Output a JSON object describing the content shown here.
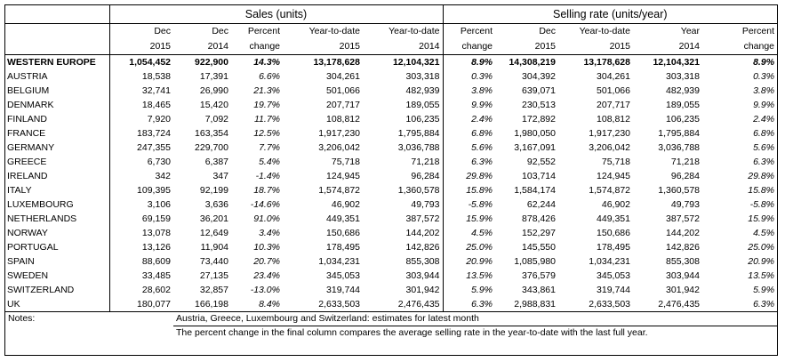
{
  "header": {
    "sales_title": "Sales (units)",
    "rate_title": "Selling rate (units/year)",
    "cols_line1": [
      "Dec",
      "Dec",
      "Percent",
      "Year-to-date",
      "Year-to-date",
      "Percent",
      "Dec",
      "Year-to-date",
      "Year",
      "Percent"
    ],
    "cols_line2": [
      "2015",
      "2014",
      "change",
      "2015",
      "2014",
      "change",
      "2015",
      "2015",
      "2014",
      "change"
    ]
  },
  "rows": [
    {
      "name": "WESTERN EUROPE",
      "bold": true,
      "v": [
        "1,054,452",
        "922,900",
        "14.3%",
        "13,178,628",
        "12,104,321",
        "8.9%",
        "14,308,219",
        "13,178,628",
        "12,104,321",
        "8.9%"
      ]
    },
    {
      "name": "AUSTRIA",
      "v": [
        "18,538",
        "17,391",
        "6.6%",
        "304,261",
        "303,318",
        "0.3%",
        "304,392",
        "304,261",
        "303,318",
        "0.3%"
      ]
    },
    {
      "name": "BELGIUM",
      "v": [
        "32,741",
        "26,990",
        "21.3%",
        "501,066",
        "482,939",
        "3.8%",
        "639,071",
        "501,066",
        "482,939",
        "3.8%"
      ]
    },
    {
      "name": "DENMARK",
      "v": [
        "18,465",
        "15,420",
        "19.7%",
        "207,717",
        "189,055",
        "9.9%",
        "230,513",
        "207,717",
        "189,055",
        "9.9%"
      ]
    },
    {
      "name": "FINLAND",
      "v": [
        "7,920",
        "7,092",
        "11.7%",
        "108,812",
        "106,235",
        "2.4%",
        "172,892",
        "108,812",
        "106,235",
        "2.4%"
      ]
    },
    {
      "name": "FRANCE",
      "v": [
        "183,724",
        "163,354",
        "12.5%",
        "1,917,230",
        "1,795,884",
        "6.8%",
        "1,980,050",
        "1,917,230",
        "1,795,884",
        "6.8%"
      ]
    },
    {
      "name": "GERMANY",
      "v": [
        "247,355",
        "229,700",
        "7.7%",
        "3,206,042",
        "3,036,788",
        "5.6%",
        "3,167,091",
        "3,206,042",
        "3,036,788",
        "5.6%"
      ]
    },
    {
      "name": "GREECE",
      "v": [
        "6,730",
        "6,387",
        "5.4%",
        "75,718",
        "71,218",
        "6.3%",
        "92,552",
        "75,718",
        "71,218",
        "6.3%"
      ]
    },
    {
      "name": "IRELAND",
      "v": [
        "342",
        "347",
        "-1.4%",
        "124,945",
        "96,284",
        "29.8%",
        "103,714",
        "124,945",
        "96,284",
        "29.8%"
      ]
    },
    {
      "name": "ITALY",
      "v": [
        "109,395",
        "92,199",
        "18.7%",
        "1,574,872",
        "1,360,578",
        "15.8%",
        "1,584,174",
        "1,574,872",
        "1,360,578",
        "15.8%"
      ]
    },
    {
      "name": "LUXEMBOURG",
      "v": [
        "3,106",
        "3,636",
        "-14.6%",
        "46,902",
        "49,793",
        "-5.8%",
        "62,244",
        "46,902",
        "49,793",
        "-5.8%"
      ]
    },
    {
      "name": "NETHERLANDS",
      "v": [
        "69,159",
        "36,201",
        "91.0%",
        "449,351",
        "387,572",
        "15.9%",
        "878,426",
        "449,351",
        "387,572",
        "15.9%"
      ]
    },
    {
      "name": "NORWAY",
      "v": [
        "13,078",
        "12,649",
        "3.4%",
        "150,686",
        "144,202",
        "4.5%",
        "152,297",
        "150,686",
        "144,202",
        "4.5%"
      ]
    },
    {
      "name": "PORTUGAL",
      "v": [
        "13,126",
        "11,904",
        "10.3%",
        "178,495",
        "142,826",
        "25.0%",
        "145,550",
        "178,495",
        "142,826",
        "25.0%"
      ]
    },
    {
      "name": "SPAIN",
      "v": [
        "88,609",
        "73,440",
        "20.7%",
        "1,034,231",
        "855,308",
        "20.9%",
        "1,085,980",
        "1,034,231",
        "855,308",
        "20.9%"
      ]
    },
    {
      "name": "SWEDEN",
      "v": [
        "33,485",
        "27,135",
        "23.4%",
        "345,053",
        "303,944",
        "13.5%",
        "376,579",
        "345,053",
        "303,944",
        "13.5%"
      ]
    },
    {
      "name": "SWITZERLAND",
      "v": [
        "28,602",
        "32,857",
        "-13.0%",
        "319,744",
        "301,942",
        "5.9%",
        "343,861",
        "319,744",
        "301,942",
        "5.9%"
      ]
    },
    {
      "name": "UK",
      "v": [
        "180,077",
        "166,198",
        "8.4%",
        "2,633,503",
        "2,476,435",
        "6.3%",
        "2,988,831",
        "2,633,503",
        "2,476,435",
        "6.3%"
      ]
    }
  ],
  "notes": {
    "label": "Notes:",
    "line1": "Austria, Greece, Luxembourg and Switzerland: estimates for latest month",
    "line2": "The percent change in the final column compares the average selling rate in the year-to-date with the last full year."
  }
}
